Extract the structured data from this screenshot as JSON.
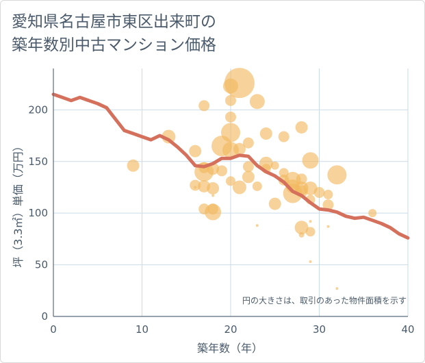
{
  "title": {
    "line1": "愛知県名古屋市東区出来町の",
    "line2": "築年数別中古マンション価格"
  },
  "note": "円の大きさは、取引のあった物件面積を示す",
  "colors": {
    "line": "#d4705c",
    "bubble": "#f2b85e",
    "grid": "#c9dbe9",
    "axis": "#5a6a7a",
    "text": "#4a5a6a"
  },
  "chart_data": {
    "type": "scatter",
    "xlabel": "築年数（年）",
    "ylabel": "坪（3.3㎡）単価（万円）",
    "xlim": [
      0,
      40
    ],
    "ylim": [
      0,
      240
    ],
    "xticks": [
      "0",
      "10",
      "20",
      "30",
      "40"
    ],
    "yticks": [
      "0",
      "50",
      "100",
      "150",
      "200"
    ],
    "grid": true,
    "series": [
      {
        "type": "line",
        "points": [
          [
            0,
            215
          ],
          [
            1,
            212
          ],
          [
            2,
            209
          ],
          [
            3,
            212
          ],
          [
            4,
            209
          ],
          [
            5,
            206
          ],
          [
            6,
            202
          ],
          [
            7,
            191
          ],
          [
            8,
            180
          ],
          [
            9,
            177
          ],
          [
            10,
            174
          ],
          [
            11,
            171
          ],
          [
            12,
            175
          ],
          [
            13,
            171
          ],
          [
            14,
            164
          ],
          [
            15,
            156
          ],
          [
            16,
            146
          ],
          [
            17,
            145
          ],
          [
            18,
            148
          ],
          [
            19,
            153
          ],
          [
            20,
            153
          ],
          [
            21,
            156
          ],
          [
            22,
            155
          ],
          [
            23,
            146
          ],
          [
            24,
            140
          ],
          [
            25,
            136
          ],
          [
            26,
            130
          ],
          [
            27,
            121
          ],
          [
            28,
            117
          ],
          [
            29,
            110
          ],
          [
            30,
            104
          ],
          [
            31,
            103
          ],
          [
            32,
            101
          ],
          [
            33,
            97
          ],
          [
            34,
            95
          ],
          [
            35,
            96
          ],
          [
            36,
            93
          ],
          [
            37,
            90
          ],
          [
            38,
            86
          ],
          [
            39,
            80
          ],
          [
            40,
            76
          ]
        ]
      },
      {
        "type": "bubble",
        "points": [
          [
            21,
            226,
            22
          ],
          [
            20,
            223,
            11
          ],
          [
            23,
            208,
            11
          ],
          [
            17,
            204,
            8
          ],
          [
            20,
            209,
            8
          ],
          [
            20,
            193,
            8
          ],
          [
            28,
            183,
            9
          ],
          [
            13,
            174,
            10
          ],
          [
            24,
            177,
            9
          ],
          [
            26,
            174,
            8
          ],
          [
            20,
            178,
            14
          ],
          [
            19,
            165,
            15
          ],
          [
            20,
            161,
            12
          ],
          [
            21,
            162,
            9
          ],
          [
            22,
            168,
            8
          ],
          [
            16,
            160,
            9
          ],
          [
            9,
            146,
            9
          ],
          [
            17,
            140,
            14
          ],
          [
            17,
            144,
            8
          ],
          [
            18,
            143,
            9
          ],
          [
            19,
            141,
            8
          ],
          [
            22,
            145,
            8
          ],
          [
            22,
            135,
            9
          ],
          [
            24,
            148,
            10
          ],
          [
            24,
            143,
            7
          ],
          [
            25,
            146,
            6
          ],
          [
            26,
            139,
            7
          ],
          [
            26,
            132,
            8
          ],
          [
            27,
            132,
            12
          ],
          [
            27,
            126,
            10
          ],
          [
            28,
            133,
            8
          ],
          [
            28,
            124,
            10
          ],
          [
            29,
            151,
            12
          ],
          [
            29,
            124,
            10
          ],
          [
            30,
            120,
            8
          ],
          [
            31,
            118,
            7
          ],
          [
            32,
            137,
            14
          ],
          [
            16,
            127,
            8
          ],
          [
            17,
            126,
            9
          ],
          [
            18,
            124,
            9
          ],
          [
            20,
            131,
            7
          ],
          [
            21,
            125,
            10
          ],
          [
            23,
            126,
            7
          ],
          [
            25,
            109,
            9
          ],
          [
            27,
            119,
            14
          ],
          [
            28,
            121,
            9
          ],
          [
            29,
            113,
            7
          ],
          [
            31,
            108,
            8
          ],
          [
            17,
            104,
            8
          ],
          [
            18,
            101,
            12
          ],
          [
            18,
            104,
            8
          ],
          [
            28,
            86,
            10
          ],
          [
            29,
            82,
            7
          ],
          [
            28,
            79,
            4
          ],
          [
            36,
            100,
            6
          ],
          [
            23,
            88,
            2
          ],
          [
            29,
            92,
            2
          ],
          [
            31,
            87,
            2
          ],
          [
            29,
            53,
            2
          ],
          [
            32,
            27,
            2
          ],
          [
            16,
            125,
            2
          ],
          [
            18,
            117,
            2
          ]
        ]
      }
    ]
  }
}
